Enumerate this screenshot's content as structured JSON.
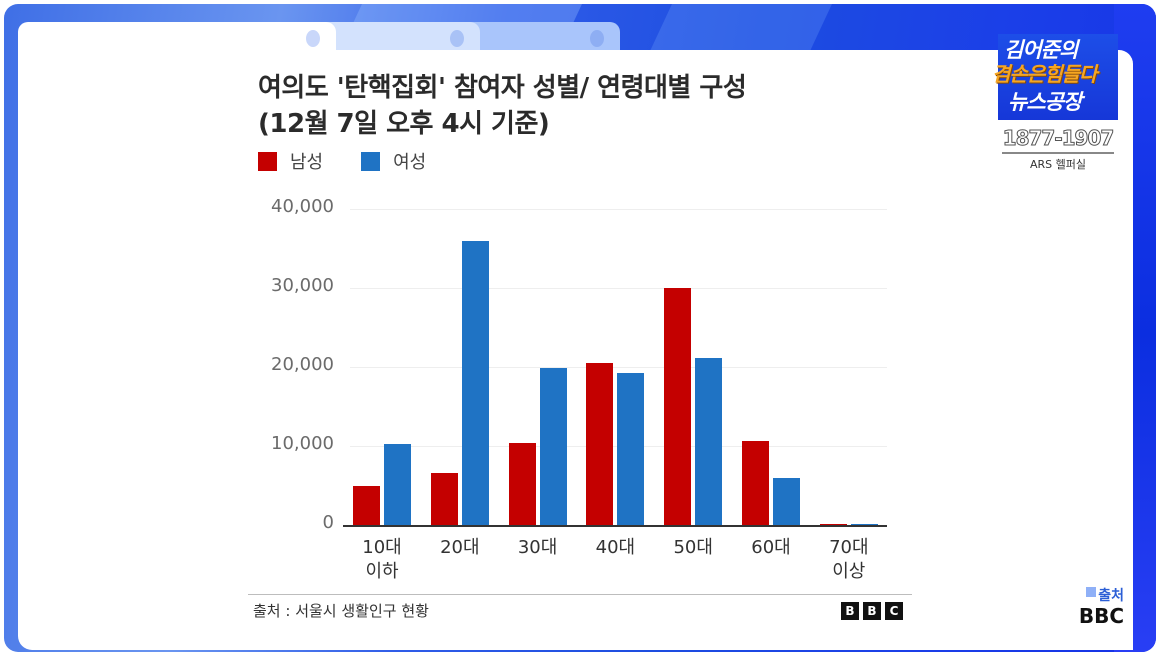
{
  "chart_data": {
    "type": "bar",
    "title": "여의도 '탄핵집회' 참여자 성별/ 연령대별 구성",
    "subtitle": "(12월 7일 오후 4시 기준)",
    "categories": [
      "10대 이하",
      "20대",
      "30대",
      "40대",
      "50대",
      "60대",
      "70대 이상"
    ],
    "category_lines": [
      [
        "10대",
        "이하"
      ],
      [
        "20대"
      ],
      [
        "30대"
      ],
      [
        "40대"
      ],
      [
        "50대"
      ],
      [
        "60대"
      ],
      [
        "70대",
        "이상"
      ]
    ],
    "series": [
      {
        "name": "남성",
        "color": "#c40000",
        "values": [
          4900,
          6600,
          10400,
          20500,
          30000,
          10600,
          100
        ]
      },
      {
        "name": "여성",
        "color": "#1f73c4",
        "values": [
          10200,
          35900,
          19900,
          19200,
          21200,
          5900,
          100
        ]
      }
    ],
    "xlabel": "",
    "ylabel": "",
    "ylim": [
      0,
      40000
    ],
    "yticks": [
      0,
      10000,
      20000,
      30000,
      40000
    ],
    "ytick_labels": [
      "0",
      "10,000",
      "20,000",
      "30,000",
      "40,000"
    ],
    "grid": true,
    "legend_position": "top-left",
    "source": "출처 : 서울시 생활인구 현황"
  },
  "header": {
    "title_line1": "여의도 '탄핵집회' 참여자 성별/ 연령대별 구성",
    "title_line2": "(12월 7일 오후 4시 기준)"
  },
  "legend": [
    {
      "label": "남성",
      "color": "#c40000"
    },
    {
      "label": "여성",
      "color": "#1f73c4"
    }
  ],
  "footer": {
    "source": "출처 : 서울시 생활인구 현황",
    "logo": [
      "B",
      "B",
      "C"
    ]
  },
  "brand": {
    "line1": "김어준의",
    "line2": "겸손은힘들다",
    "line3": "뉴스공장",
    "phone": "1877-1907",
    "ars": "ARS 헬퍼실"
  },
  "credit": {
    "label": "출처",
    "source": "BBC"
  }
}
